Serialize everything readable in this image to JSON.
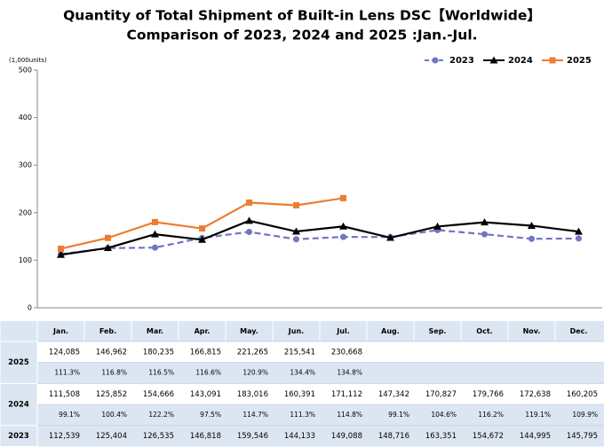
{
  "chart_data": {
    "type": "line",
    "title": "Quantity of Total Shipment of Built-in Lens DSC【Worldwide】",
    "subtitle": "Comparison of 2023, 2024 and 2025 :Jan.-Jul.",
    "y_unit": "(1,000units)",
    "categories": [
      "Jan.",
      "Feb.",
      "Mar.",
      "Apr.",
      "May.",
      "Jun.",
      "Jul.",
      "Aug.",
      "Sep.",
      "Oct.",
      "Nov.",
      "Dec."
    ],
    "series": [
      {
        "name": "2023",
        "color": "#7275c0",
        "dashed": true,
        "marker": "circle",
        "values": [
          112.539,
          125.404,
          126.535,
          146.818,
          159.546,
          144.133,
          149.088,
          148.716,
          163.351,
          154.672,
          144.995,
          145.795
        ]
      },
      {
        "name": "2024",
        "color": "#000000",
        "dashed": false,
        "marker": "triangle",
        "values": [
          111.508,
          125.852,
          154.666,
          143.091,
          183.016,
          160.391,
          171.112,
          147.342,
          170.827,
          179.766,
          172.638,
          160.205
        ]
      },
      {
        "name": "2025",
        "color": "#ed7d31",
        "dashed": false,
        "marker": "square",
        "values": [
          124.085,
          146.962,
          180.235,
          166.815,
          221.265,
          215.541,
          230.668,
          null,
          null,
          null,
          null,
          null
        ]
      }
    ],
    "ylim": [
      0,
      500
    ],
    "yticks": [
      0,
      100,
      200,
      300,
      400,
      500
    ],
    "grid": false,
    "legend": "top-right"
  },
  "table": {
    "groups": [
      {
        "label": "2025",
        "rows": [
          [
            "124,085",
            "146,962",
            "180,235",
            "166,815",
            "221,265",
            "215,541",
            "230,668"
          ],
          [
            "111.3%",
            "116.8%",
            "116.5%",
            "116.6%",
            "120.9%",
            "134.4%",
            "134.8%"
          ]
        ]
      },
      {
        "label": "2024",
        "rows": [
          [
            "111,508",
            "125,852",
            "154,666",
            "143,091",
            "183,016",
            "160,391",
            "171,112",
            "147,342",
            "170,827",
            "179,766",
            "172,638",
            "160,205"
          ],
          [
            "99.1%",
            "100.4%",
            "122.2%",
            "97.5%",
            "114.7%",
            "111.3%",
            "114.8%",
            "99.1%",
            "104.6%",
            "116.2%",
            "119.1%",
            "109.9%"
          ]
        ]
      },
      {
        "label": "2023",
        "rows": [
          [
            "112,539",
            "125,404",
            "126,535",
            "146,818",
            "159,546",
            "144,133",
            "149,088",
            "148,716",
            "163,351",
            "154,672",
            "144,995",
            "145,795"
          ]
        ]
      }
    ]
  }
}
